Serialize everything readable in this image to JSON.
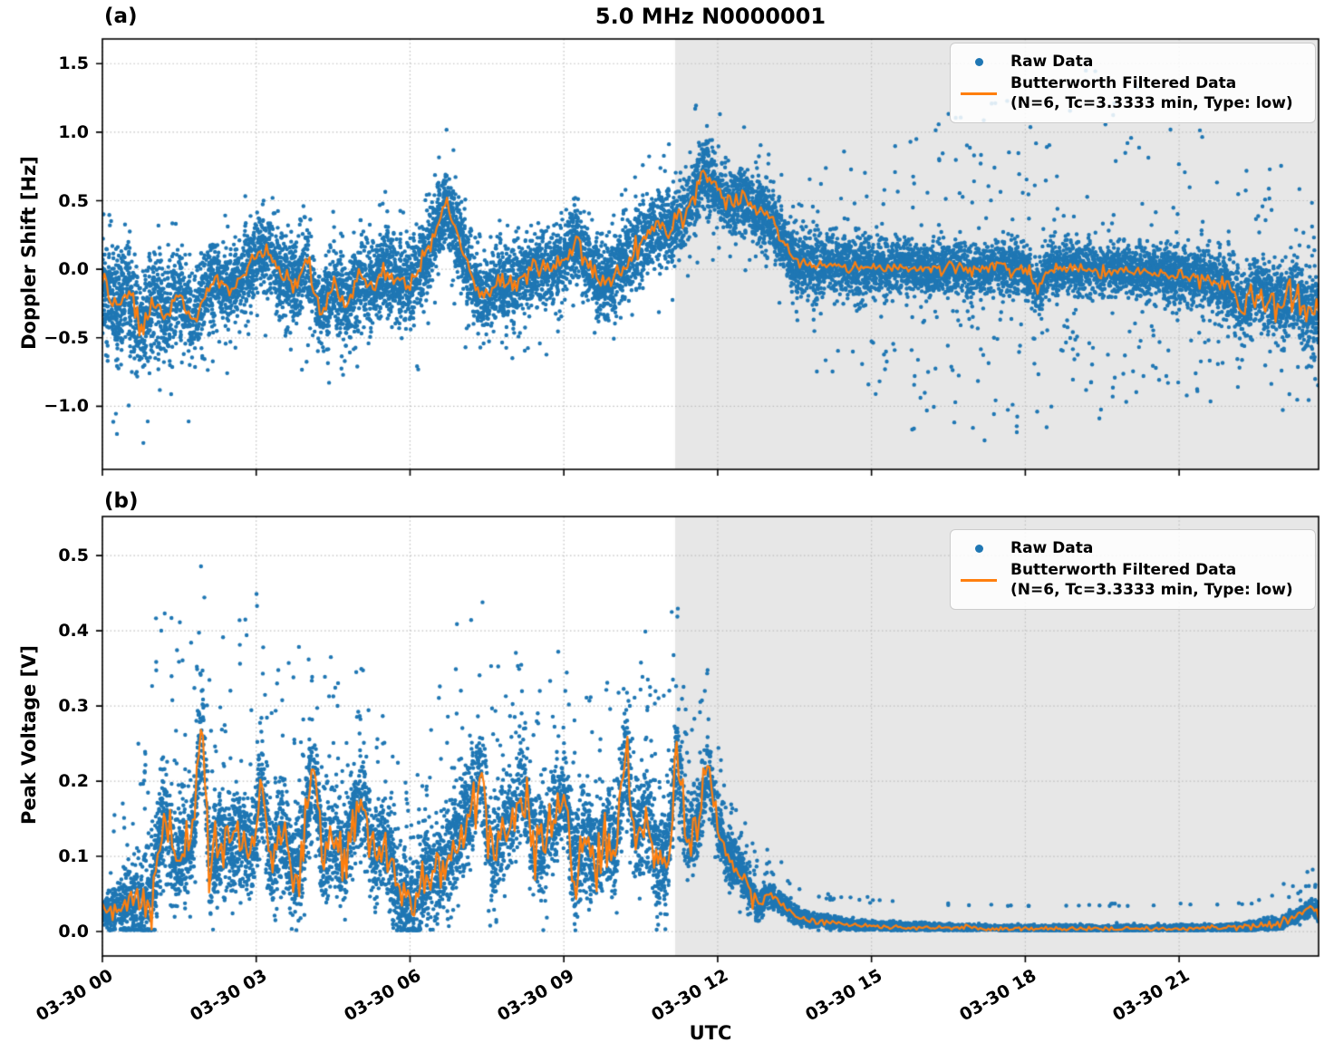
{
  "figure": {
    "title": "5.0 MHz N0000001",
    "xlabel": "UTC",
    "colors": {
      "raw": "#1f77b4",
      "filtered": "#ff7f0e",
      "shade": "#e7e7e7",
      "grid": "#bfbfbf",
      "axis": "#000000",
      "legend_border": "#cccccc"
    },
    "legend": {
      "raw_label": "Raw Data",
      "filtered_label_line1": "Butterworth Filtered Data",
      "filtered_label_line2": "(N=6, Tc=3.3333 min, Type: low)"
    }
  },
  "chart_data": [
    {
      "id": "a",
      "panel_label": "(a)",
      "type": "scatter",
      "title": "5.0 MHz N0000001",
      "ylabel": "Doppler Shift [Hz]",
      "ylim": [
        -1.46,
        1.68
      ],
      "yticks": [
        {
          "v": 1.5,
          "label": "1.5"
        },
        {
          "v": 1.0,
          "label": "1.0"
        },
        {
          "v": 0.5,
          "label": "0.5"
        },
        {
          "v": 0.0,
          "label": "0.0"
        },
        {
          "v": -0.5,
          "label": "−0.5"
        },
        {
          "v": -1.0,
          "label": "−1.0"
        }
      ],
      "xlim_hours": [
        0,
        23.72
      ],
      "xticks": [
        {
          "h": 0,
          "label": "03-30 00"
        },
        {
          "h": 3,
          "label": "03-30 03"
        },
        {
          "h": 6,
          "label": "03-30 06"
        },
        {
          "h": 9,
          "label": "03-30 09"
        },
        {
          "h": 12,
          "label": "03-30 12"
        },
        {
          "h": 15,
          "label": "03-30 15"
        },
        {
          "h": 18,
          "label": "03-30 18"
        },
        {
          "h": 21,
          "label": "03-30 21"
        }
      ],
      "shade_start_hour": 11.17,
      "grid": true,
      "legend_position": "upper right",
      "series": [
        {
          "name": "Raw Data",
          "type": "scatter",
          "color": "#1f77b4"
        },
        {
          "name": "Butterworth Filtered Data (N=6, Tc=3.3333 min, Type: low)",
          "type": "line",
          "color": "#ff7f0e"
        }
      ],
      "filtered": {
        "t": [
          0,
          0.25,
          0.5,
          0.75,
          1,
          1.25,
          1.5,
          1.75,
          2,
          2.25,
          2.5,
          2.75,
          3,
          3.25,
          3.5,
          3.75,
          4,
          4.25,
          4.5,
          4.75,
          5,
          5.25,
          5.5,
          5.75,
          6,
          6.25,
          6.5,
          6.7,
          6.9,
          7.1,
          7.3,
          7.5,
          7.75,
          8,
          8.25,
          8.5,
          8.75,
          9,
          9.25,
          9.5,
          9.75,
          10,
          10.25,
          10.5,
          10.75,
          11,
          11.25,
          11.5,
          11.75,
          12,
          12.25,
          12.5,
          12.75,
          13,
          13.25,
          13.5,
          13.75,
          14,
          14.5,
          15,
          15.5,
          16,
          16.5,
          17,
          17.5,
          18,
          18.25,
          18.5,
          19,
          19.5,
          20,
          20.5,
          21,
          21.5,
          22,
          22.25,
          22.5,
          22.75,
          23,
          23.25,
          23.5,
          23.72
        ],
        "y": [
          -0.1,
          -0.3,
          -0.15,
          -0.45,
          -0.22,
          -0.33,
          -0.14,
          -0.4,
          -0.18,
          -0.06,
          -0.16,
          -0.04,
          0.1,
          0.14,
          -0.06,
          -0.13,
          0.05,
          -0.32,
          -0.1,
          -0.26,
          -0.07,
          -0.13,
          0.0,
          -0.06,
          -0.11,
          0.06,
          0.3,
          0.48,
          0.28,
          0.05,
          -0.16,
          -0.18,
          -0.06,
          -0.13,
          -0.04,
          0.03,
          -0.03,
          0.1,
          0.19,
          0.02,
          -0.13,
          -0.04,
          0.09,
          0.21,
          0.28,
          0.3,
          0.36,
          0.5,
          0.72,
          0.55,
          0.47,
          0.51,
          0.44,
          0.4,
          0.21,
          0.07,
          0.03,
          0.04,
          0.02,
          0.01,
          0.02,
          0.0,
          0.01,
          -0.01,
          0.01,
          0.0,
          -0.14,
          0.01,
          0.0,
          -0.02,
          -0.01,
          -0.03,
          -0.05,
          -0.08,
          -0.1,
          -0.3,
          -0.12,
          -0.2,
          -0.27,
          -0.15,
          -0.33,
          -0.3
        ]
      },
      "raw_noise": {
        "t": [
          0,
          1,
          2,
          3,
          4,
          5,
          6,
          7,
          8,
          9,
          10,
          11,
          12,
          13,
          14,
          15,
          16,
          17,
          18,
          19,
          20,
          21,
          22,
          23,
          24
        ],
        "core": [
          0.38,
          0.33,
          0.3,
          0.3,
          0.33,
          0.3,
          0.3,
          0.3,
          0.28,
          0.28,
          0.3,
          0.28,
          0.25,
          0.22,
          0.25,
          0.2,
          0.18,
          0.18,
          0.18,
          0.18,
          0.18,
          0.2,
          0.22,
          0.27,
          0.3
        ],
        "up": [
          0.45,
          0.5,
          0.45,
          0.4,
          0.45,
          0.4,
          0.45,
          0.4,
          0.35,
          0.35,
          0.35,
          0.5,
          0.5,
          0.4,
          0.6,
          0.8,
          0.9,
          1.3,
          1.0,
          1.4,
          1.2,
          1.2,
          0.8,
          0.9,
          0.9
        ],
        "dn": [
          0.9,
          0.7,
          0.6,
          0.5,
          0.6,
          0.55,
          0.6,
          0.55,
          0.5,
          0.45,
          0.5,
          0.45,
          0.4,
          0.4,
          0.7,
          0.9,
          1.2,
          1.3,
          1.0,
          1.0,
          0.9,
          0.8,
          0.7,
          0.7,
          0.8
        ],
        "p": [
          0.06,
          0.05,
          0.04,
          0.04,
          0.05,
          0.04,
          0.04,
          0.04,
          0.03,
          0.03,
          0.04,
          0.04,
          0.03,
          0.03,
          0.06,
          0.08,
          0.1,
          0.1,
          0.09,
          0.09,
          0.08,
          0.08,
          0.06,
          0.06,
          0.06
        ],
        "ljit": [
          0.04,
          0.04,
          0.04,
          0.04,
          0.04,
          0.04,
          0.04,
          0.04,
          0.04,
          0.04,
          0.04,
          0.05,
          0.05,
          0.03,
          0.02,
          0.02,
          0.02,
          0.025,
          0.025,
          0.02,
          0.02,
          0.025,
          0.05,
          0.07,
          0.07
        ]
      },
      "render": {
        "n_points": 13000,
        "seed": 12345,
        "dot_radius": 2.2,
        "outlier_mode": "both",
        "clip_min": null
      }
    },
    {
      "id": "b",
      "panel_label": "(b)",
      "type": "scatter",
      "ylabel": "Peak Voltage [V]",
      "ylim": [
        -0.0325,
        0.552
      ],
      "yticks": [
        {
          "v": 0.5,
          "label": "0.5"
        },
        {
          "v": 0.4,
          "label": "0.4"
        },
        {
          "v": 0.3,
          "label": "0.3"
        },
        {
          "v": 0.2,
          "label": "0.2"
        },
        {
          "v": 0.1,
          "label": "0.1"
        },
        {
          "v": 0.0,
          "label": "0.0"
        }
      ],
      "xlim_hours": [
        0,
        23.72
      ],
      "xticks": [
        {
          "h": 0,
          "label": "03-30 00"
        },
        {
          "h": 3,
          "label": "03-30 03"
        },
        {
          "h": 6,
          "label": "03-30 06"
        },
        {
          "h": 9,
          "label": "03-30 09"
        },
        {
          "h": 12,
          "label": "03-30 12"
        },
        {
          "h": 15,
          "label": "03-30 15"
        },
        {
          "h": 18,
          "label": "03-30 18"
        },
        {
          "h": 21,
          "label": "03-30 21"
        }
      ],
      "shade_start_hour": 11.17,
      "grid": true,
      "legend_position": "upper right",
      "series": [
        {
          "name": "Raw Data",
          "type": "scatter",
          "color": "#1f77b4"
        },
        {
          "name": "Butterworth Filtered Data (N=6, Tc=3.3333 min, Type: low)",
          "type": "line",
          "color": "#ff7f0e"
        }
      ],
      "filtered": {
        "t": [
          0,
          0.25,
          0.5,
          0.75,
          1,
          1.2,
          1.4,
          1.6,
          1.8,
          1.93,
          2.1,
          2.3,
          2.5,
          2.7,
          2.9,
          3.1,
          3.3,
          3.5,
          3.7,
          3.9,
          4.1,
          4.3,
          4.5,
          4.7,
          4.9,
          5.1,
          5.3,
          5.5,
          5.7,
          5.9,
          6.1,
          6.3,
          6.5,
          6.7,
          6.9,
          7.1,
          7.35,
          7.6,
          7.8,
          8,
          8.2,
          8.4,
          8.6,
          8.8,
          9,
          9.2,
          9.4,
          9.6,
          9.8,
          10,
          10.2,
          10.4,
          10.6,
          10.8,
          11,
          11.2,
          11.4,
          11.6,
          11.8,
          12,
          12.2,
          12.4,
          12.6,
          12.8,
          13,
          13.2,
          13.5,
          13.8,
          14.2,
          14.6,
          15,
          15.5,
          16,
          16.5,
          17,
          17.5,
          18,
          18.5,
          19,
          19.5,
          20,
          20.5,
          21,
          21.5,
          22,
          22.5,
          23,
          23.3,
          23.6,
          23.72
        ],
        "y": [
          0.03,
          0.025,
          0.042,
          0.035,
          0.058,
          0.16,
          0.085,
          0.1,
          0.13,
          0.295,
          0.08,
          0.12,
          0.105,
          0.125,
          0.095,
          0.185,
          0.09,
          0.14,
          0.075,
          0.105,
          0.225,
          0.095,
          0.125,
          0.085,
          0.155,
          0.16,
          0.09,
          0.12,
          0.065,
          0.045,
          0.03,
          0.085,
          0.07,
          0.095,
          0.12,
          0.145,
          0.22,
          0.095,
          0.13,
          0.15,
          0.2,
          0.115,
          0.105,
          0.15,
          0.185,
          0.075,
          0.13,
          0.09,
          0.13,
          0.095,
          0.23,
          0.115,
          0.16,
          0.1,
          0.095,
          0.23,
          0.12,
          0.14,
          0.215,
          0.14,
          0.1,
          0.085,
          0.06,
          0.035,
          0.05,
          0.04,
          0.022,
          0.015,
          0.012,
          0.009,
          0.008,
          0.006,
          0.006,
          0.005,
          0.005,
          0.004,
          0.004,
          0.004,
          0.004,
          0.004,
          0.004,
          0.004,
          0.004,
          0.005,
          0.005,
          0.007,
          0.012,
          0.02,
          0.032,
          0.026
        ]
      },
      "raw_noise": {
        "t": [
          0,
          1,
          2,
          3,
          4,
          5,
          6,
          7,
          8,
          9,
          10,
          11,
          12,
          13,
          14,
          15,
          16,
          17,
          18,
          19,
          20,
          21,
          22,
          23,
          24
        ],
        "core": [
          0.02,
          0.07,
          0.07,
          0.07,
          0.07,
          0.06,
          0.06,
          0.07,
          0.07,
          0.07,
          0.07,
          0.07,
          0.04,
          0.015,
          0.008,
          0.006,
          0.005,
          0.004,
          0.004,
          0.004,
          0.004,
          0.004,
          0.005,
          0.008,
          0.012
        ],
        "up": [
          0.05,
          0.35,
          0.25,
          0.28,
          0.25,
          0.18,
          0.15,
          0.3,
          0.18,
          0.2,
          0.18,
          0.25,
          0.08,
          0.03,
          0.01,
          0.008,
          0.006,
          0.005,
          0.005,
          0.005,
          0.005,
          0.005,
          0.01,
          0.02,
          0.03
        ],
        "dn": [
          0.01,
          0.02,
          0.02,
          0.02,
          0.02,
          0.02,
          0.02,
          0.02,
          0.02,
          0.02,
          0.02,
          0.02,
          0.01,
          0.005,
          0.003,
          0.002,
          0.002,
          0.002,
          0.002,
          0.002,
          0.002,
          0.002,
          0.002,
          0.003,
          0.005
        ],
        "p": [
          0.02,
          0.1,
          0.1,
          0.1,
          0.1,
          0.08,
          0.08,
          0.1,
          0.09,
          0.09,
          0.09,
          0.1,
          0.06,
          0.03,
          0.01,
          0.01,
          0.01,
          0.01,
          0.01,
          0.01,
          0.01,
          0.01,
          0.01,
          0.02,
          0.02
        ],
        "ljit": [
          0.006,
          0.02,
          0.02,
          0.02,
          0.02,
          0.02,
          0.015,
          0.02,
          0.02,
          0.02,
          0.02,
          0.025,
          0.012,
          0.004,
          0.002,
          0.0015,
          0.0015,
          0.0015,
          0.0015,
          0.0015,
          0.0015,
          0.0015,
          0.002,
          0.004,
          0.006
        ]
      },
      "render": {
        "n_points": 13000,
        "seed": 67890,
        "dot_radius": 2.2,
        "outlier_mode": "up",
        "clip_min": 0.0015
      }
    }
  ]
}
